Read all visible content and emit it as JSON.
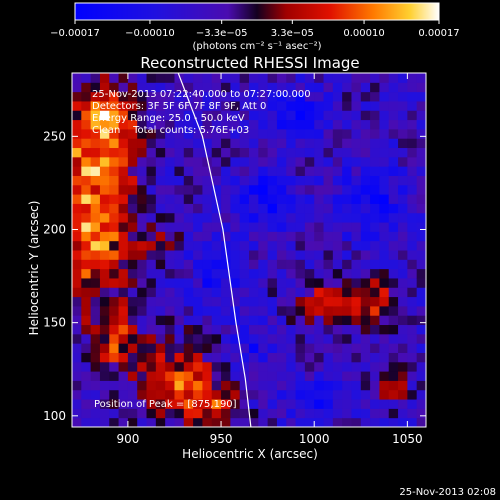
{
  "colorbar": {
    "tick_labels": [
      "−0.00017",
      "−0.00010",
      "−3.3e−05",
      "3.3e−05",
      "0.00010",
      "0.00017"
    ],
    "tick_values": [
      -0.00017,
      -0.0001,
      -3.3e-05,
      3.3e-05,
      0.0001,
      0.00017
    ],
    "range": [
      -0.00017,
      0.00017
    ],
    "units_label": "(photons cm⁻² s⁻¹ asec⁻²)"
  },
  "chart_data": {
    "type": "heatmap",
    "title": "Reconstructed RHESSI Image",
    "xlabel": "Heliocentric X (arcsec)",
    "ylabel": "Heliocentric Y (arcsec)",
    "xlim": [
      870,
      1060
    ],
    "ylim": [
      94,
      284
    ],
    "x_ticks": [
      900,
      950,
      1000,
      1050
    ],
    "y_ticks": [
      100,
      150,
      200,
      250
    ],
    "annotations": [
      "25-Nov-2013 07:22:40.000 to 07:27:00.000",
      "Detectors: 3F 5F 6F 7F 8F 9F, Att 0",
      "Energy Range: 25.0 - 50.0 keV",
      "Clean    Total counts: 5.76E+03"
    ],
    "peak_label": "Position of Peak = [875,190]",
    "peak": [
      875,
      190
    ],
    "limb_points": [
      [
        927,
        284
      ],
      [
        940,
        250
      ],
      [
        951,
        200
      ],
      [
        958,
        150
      ],
      [
        963,
        120
      ],
      [
        966,
        94
      ]
    ],
    "bright_regions": [
      {
        "x": 882,
        "y": 215,
        "sx": 14,
        "sy": 38,
        "level": 0.00017
      },
      {
        "x": 892,
        "y": 260,
        "sx": 10,
        "sy": 12,
        "level": 0.00012
      },
      {
        "x": 893,
        "y": 140,
        "sx": 8,
        "sy": 12,
        "level": 9e-05
      },
      {
        "x": 925,
        "y": 120,
        "sx": 16,
        "sy": 14,
        "level": 0.00013
      },
      {
        "x": 945,
        "y": 105,
        "sx": 10,
        "sy": 8,
        "level": 8e-05
      },
      {
        "x": 1010,
        "y": 160,
        "sx": 12,
        "sy": 8,
        "level": 0.00011
      },
      {
        "x": 1035,
        "y": 162,
        "sx": 8,
        "sy": 8,
        "level": 0.0001
      },
      {
        "x": 1043,
        "y": 118,
        "sx": 6,
        "sy": 8,
        "level": 7e-05
      },
      {
        "x": 915,
        "y": 195,
        "sx": 8,
        "sy": 6,
        "level": 6e-05
      }
    ],
    "dark_regions": [
      {
        "x": 990,
        "y": 262,
        "sx": 10,
        "sy": 8,
        "level": -0.00012
      },
      {
        "x": 975,
        "y": 215,
        "sx": 10,
        "sy": 12,
        "level": -0.0001
      },
      {
        "x": 948,
        "y": 175,
        "sx": 9,
        "sy": 12,
        "level": -9e-05
      },
      {
        "x": 1030,
        "y": 215,
        "sx": 14,
        "sy": 14,
        "level": -8e-05
      },
      {
        "x": 965,
        "y": 140,
        "sx": 8,
        "sy": 8,
        "level": -7e-05
      },
      {
        "x": 1000,
        "y": 110,
        "sx": 12,
        "sy": 8,
        "level": -7e-05
      }
    ]
  },
  "footer": {
    "timestamp": "25-Nov-2013 02:08"
  }
}
